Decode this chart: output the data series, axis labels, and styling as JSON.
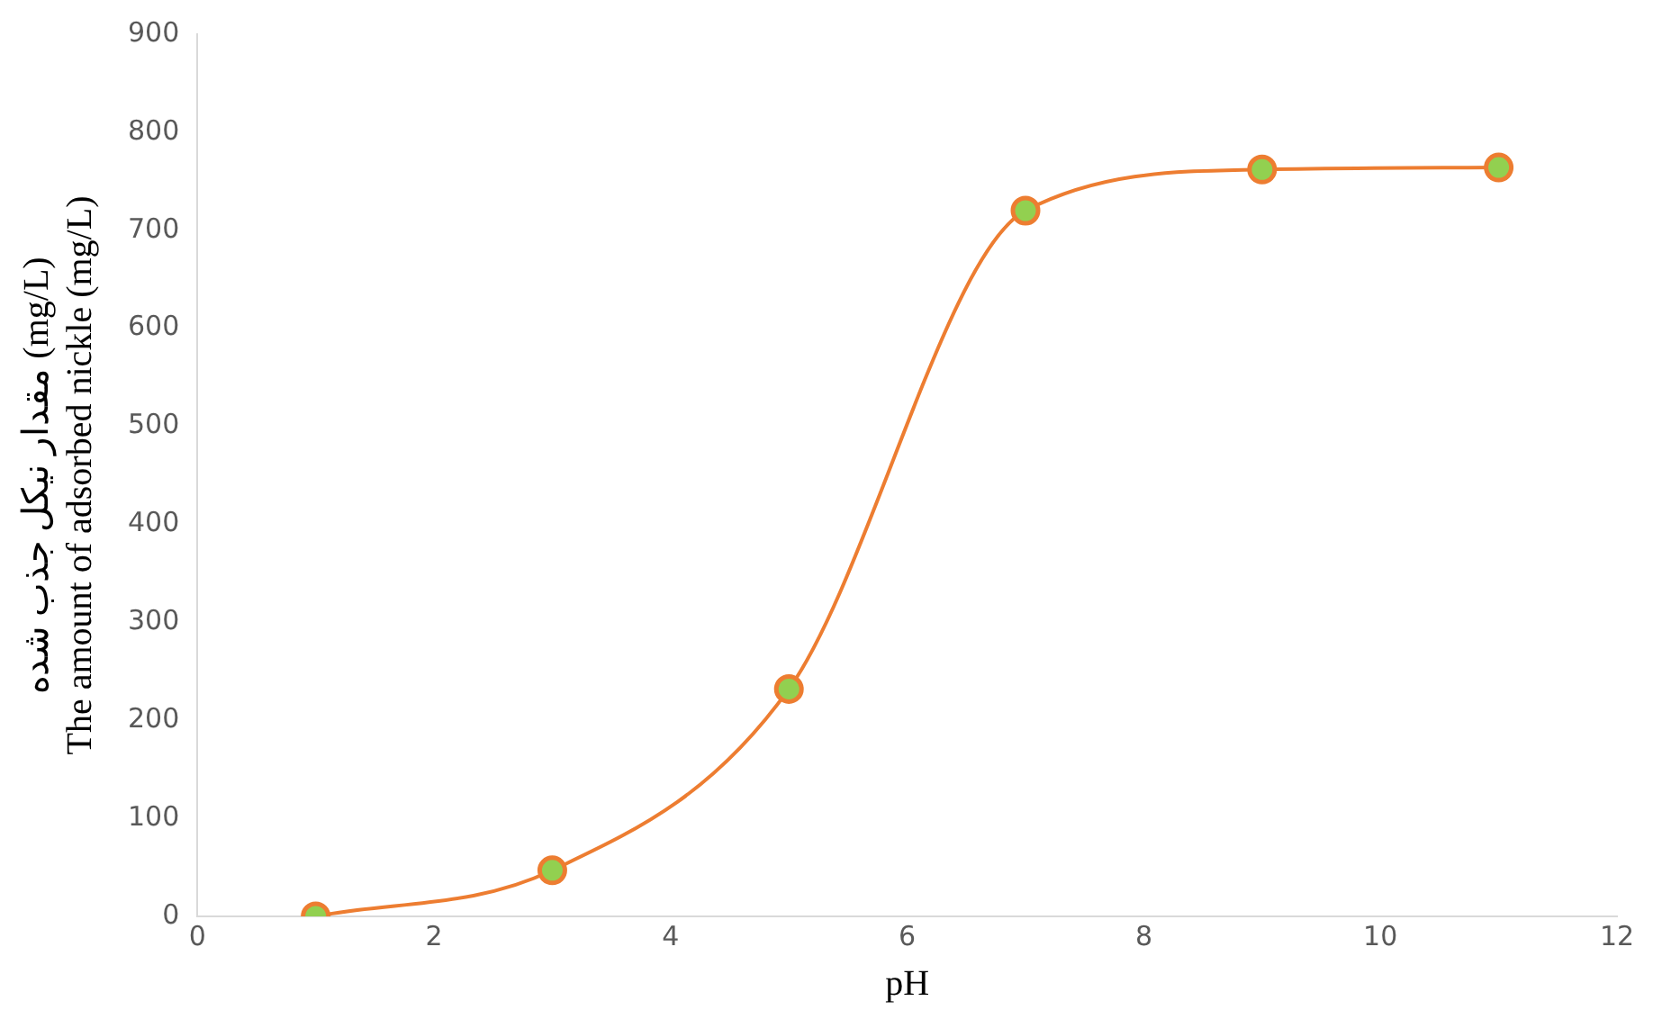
{
  "chart_data": {
    "type": "line",
    "xlabel": "pH",
    "ylabel": "مقدار نیکل جذب شده (mg/L)\nThe amount of adsorbed nickle (mg/L)",
    "x": [
      1,
      3,
      5,
      7,
      9,
      11
    ],
    "series": [
      {
        "color": "#ed7d31",
        "colors": [
          "#92d050",
          "#92d050",
          "#92d050",
          "#92d050",
          "#92d050",
          "#92d050"
        ],
        "values": [
          0,
          47,
          232,
          720,
          762,
          764
        ]
      }
    ],
    "xlim": [
      0,
      12
    ],
    "xticks": [
      0,
      2,
      4,
      6,
      8,
      10,
      12
    ],
    "ylim": [
      0,
      900
    ],
    "yticks": [
      0,
      100,
      200,
      300,
      400,
      500,
      600,
      700,
      800,
      900
    ],
    "marker": "circle",
    "line_style": "solid",
    "grid": false,
    "legend": false
  }
}
